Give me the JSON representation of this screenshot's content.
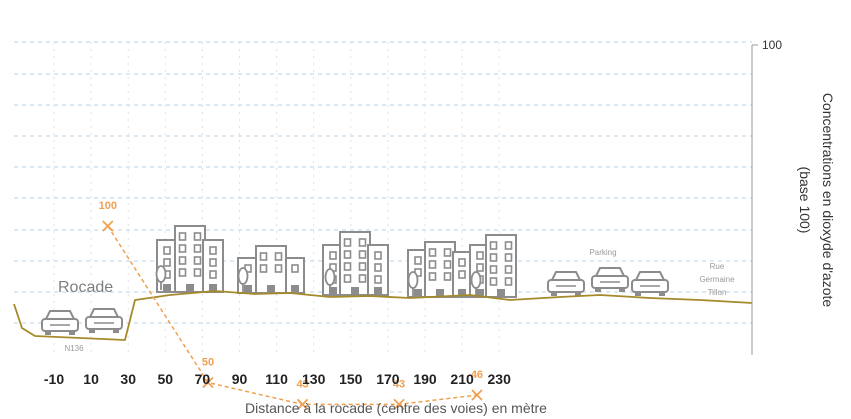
{
  "chart_data": {
    "type": "line",
    "title": "",
    "xlabel": "Distance à la rocade (centre des voies) en mètre",
    "ylabel_line1": "Concentrations en dioxyde d'azote",
    "ylabel_line2": "(base 100)",
    "x_ticks": [
      "-10",
      "10",
      "30",
      "50",
      "70",
      "90",
      "110",
      "130",
      "150",
      "170",
      "190",
      "210",
      "230"
    ],
    "y_tick_labels": [
      "100"
    ],
    "ylim": [
      0,
      100
    ],
    "grid": "horizontal dashed",
    "series": [
      {
        "color": "#f0a050",
        "style": "dashed with x markers",
        "points": [
          {
            "x": 19,
            "y": 100,
            "label": "100"
          },
          {
            "x": 73,
            "y": 50,
            "label": "50"
          },
          {
            "x": 124,
            "y": 43,
            "label": "43"
          },
          {
            "x": 176,
            "y": 43,
            "label": "43"
          },
          {
            "x": 218,
            "y": 46,
            "label": "46"
          }
        ]
      }
    ],
    "annotations": {
      "rocade": "Rocade",
      "n136": "N136",
      "parking": "Parking",
      "rue_line1": "Rue",
      "rue_line2": "Germaine",
      "rue_line3": "Tillon"
    },
    "ground_color": "#a58a2a",
    "building_color": "#8c8c8c"
  }
}
